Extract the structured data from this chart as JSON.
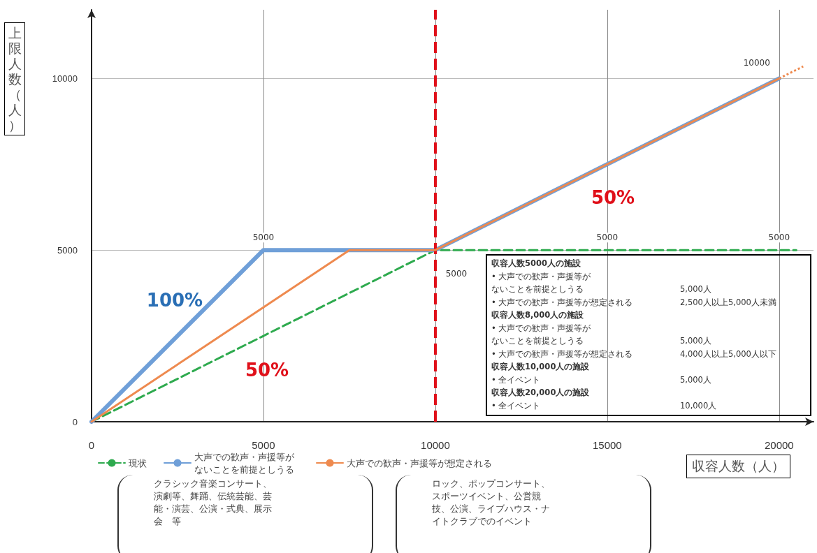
{
  "chart_data": {
    "type": "line",
    "xlabel": "収容人数（人）",
    "ylabel": "上限人数（人）",
    "xlim": [
      0,
      21000
    ],
    "ylim": [
      0,
      12000
    ],
    "xticks": [
      0,
      5000,
      10000,
      15000,
      20000
    ],
    "yticks": [
      0,
      5000,
      10000
    ],
    "grid": true,
    "legend": "bottom",
    "marker": "none",
    "series": [
      {
        "name": "現状",
        "color": "#2eaa4e",
        "line_style": "dashed",
        "x": [
          0,
          10000,
          20500
        ],
        "values": [
          0,
          5000,
          5000
        ]
      },
      {
        "name": "大声での歓声・声援等がないことを前提としうる",
        "color": "#6f9fd8",
        "line_style": "solid",
        "x": [
          0,
          5000,
          10000,
          20000
        ],
        "values": [
          0,
          5000,
          5000,
          10000
        ]
      },
      {
        "name": "大声での歓声・声援等が想定される",
        "color": "#ee8a4f",
        "line_style": "solid",
        "x": [
          0,
          7500,
          10000,
          20000
        ],
        "values": [
          0,
          5000,
          5000,
          10000
        ]
      },
      {
        "color": "#ee8a4f",
        "line_style": "dotted",
        "x": [
          20000,
          20700
        ],
        "values": [
          10000,
          10350
        ]
      }
    ],
    "ref_lines": [
      {
        "axis": "x",
        "value": 10000,
        "color": "#e0101a",
        "line_style": "dashed"
      }
    ],
    "annotations": [
      {
        "text": "5000",
        "x": 5000,
        "y": 5000
      },
      {
        "text": "5000",
        "x": 10000,
        "y": 5000
      },
      {
        "text": "5000",
        "x": 15000,
        "y": 5000
      },
      {
        "text": "5000",
        "x": 20000,
        "y": 5000
      },
      {
        "text": "10000",
        "x": 20000,
        "y": 10000
      },
      "100%",
      "50%",
      "50%",
      "収容人数5000人の施設",
      "• 大声での歓声・声援等がないことを前提としうる  5,000人",
      "• 大声での歓声・声援等が想定される  2,500人以上5,000人未満",
      "収容人数8,000人の施設",
      "• 大声での歓声・声援等がないことを前提としうる  5,000人",
      "• 大声での歓声・声援等が想定される  4,000人以上5,000人以下",
      "収容人数10,000人の施設",
      "• 全イベント  5,000人",
      "収容人数20,000人の施設",
      "• 全イベント  10,000人",
      "クラシック音楽コンサート、演劇等、舞踊、伝統芸能、芸能・演芸、公演・式典、展示会　等",
      "ロック、ポップコンサート、スポーツイベント、公営競技、公演、ライブハウス・ナイトクラブでのイベント"
    ]
  }
}
